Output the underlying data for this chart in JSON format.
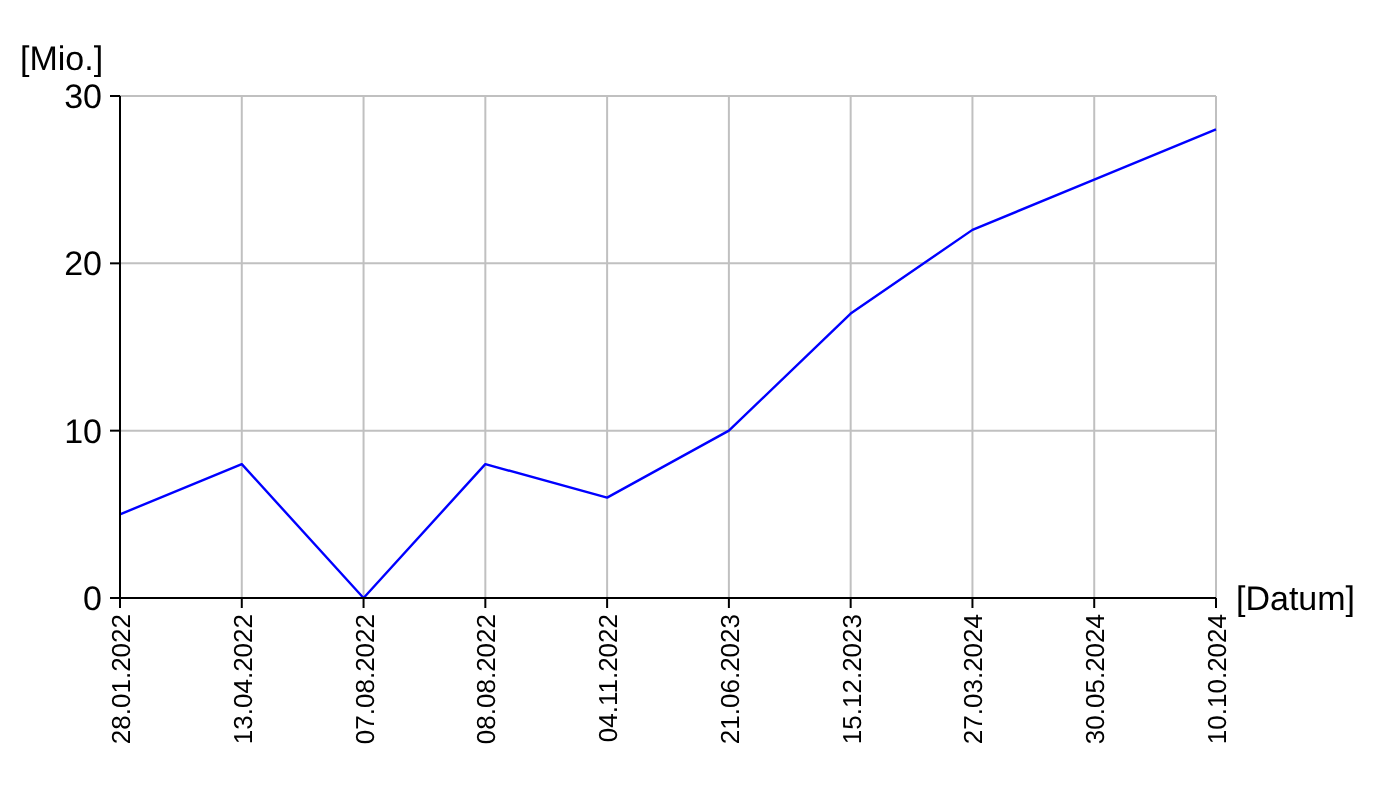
{
  "chart_data": {
    "type": "line",
    "xlabel": "[Datum]",
    "ylabel": "[Mio.]",
    "categories": [
      "28.01.2022",
      "13.04.2022",
      "07.08.2022",
      "08.08.2022",
      "04.11.2022",
      "21.06.2023",
      "15.12.2023",
      "27.03.2024",
      "30.05.2024",
      "10.10.2024"
    ],
    "series": [
      {
        "color": "#0000ff",
        "values": [
          5,
          8,
          0,
          8,
          6,
          10,
          17,
          22,
          25,
          28
        ]
      }
    ],
    "ylim": [
      0,
      30
    ],
    "yticks": [
      0,
      10,
      20,
      30
    ],
    "grid": true,
    "marker": "none",
    "line_style": "solid"
  }
}
